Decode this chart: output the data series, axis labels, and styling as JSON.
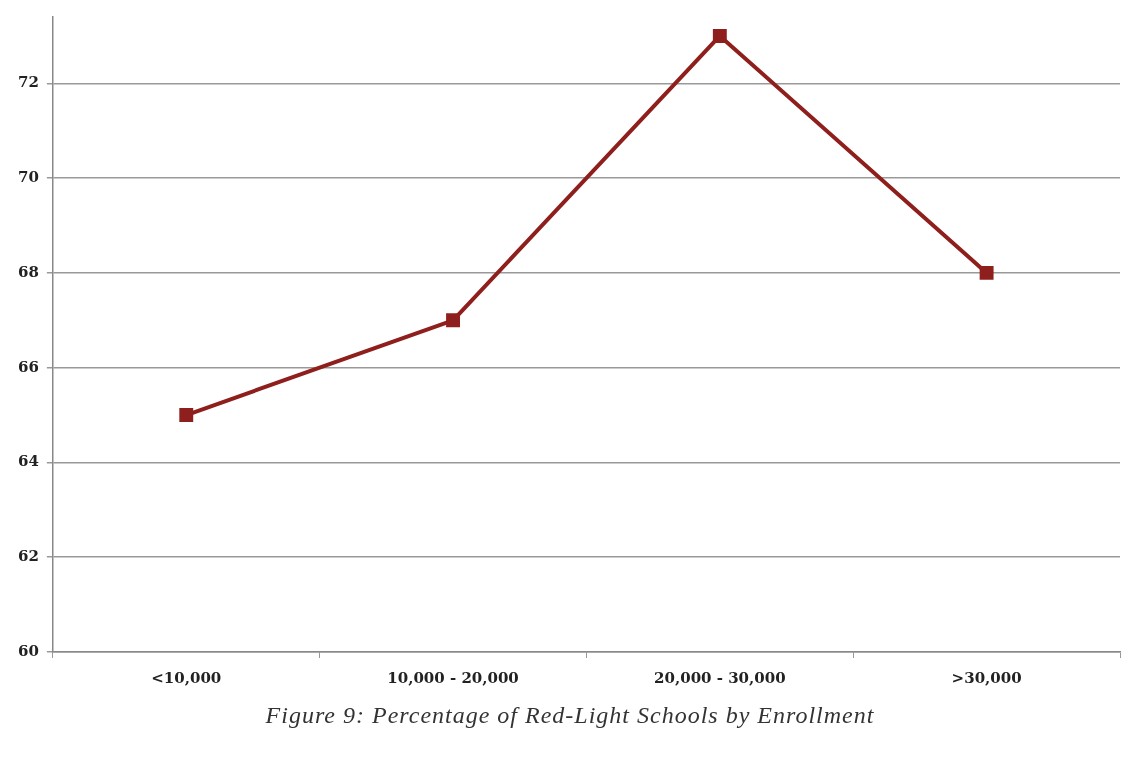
{
  "chart_data": {
    "type": "line",
    "categories": [
      "<10,000",
      "10,000 - 20,000",
      "20,000 - 30,000",
      ">30,000"
    ],
    "series": [
      {
        "color": "#8e1f1c",
        "values": [
          65,
          67,
          73,
          68
        ]
      }
    ],
    "ylim": [
      60,
      73.4
    ],
    "yticks": [
      60,
      62,
      64,
      66,
      68,
      70,
      72
    ],
    "grid": "y",
    "legend": false,
    "marker": "square",
    "line_style": "solid",
    "annotations": [
      "Figure 9: Percentage of Red-Light Schools by Enrollment"
    ]
  }
}
